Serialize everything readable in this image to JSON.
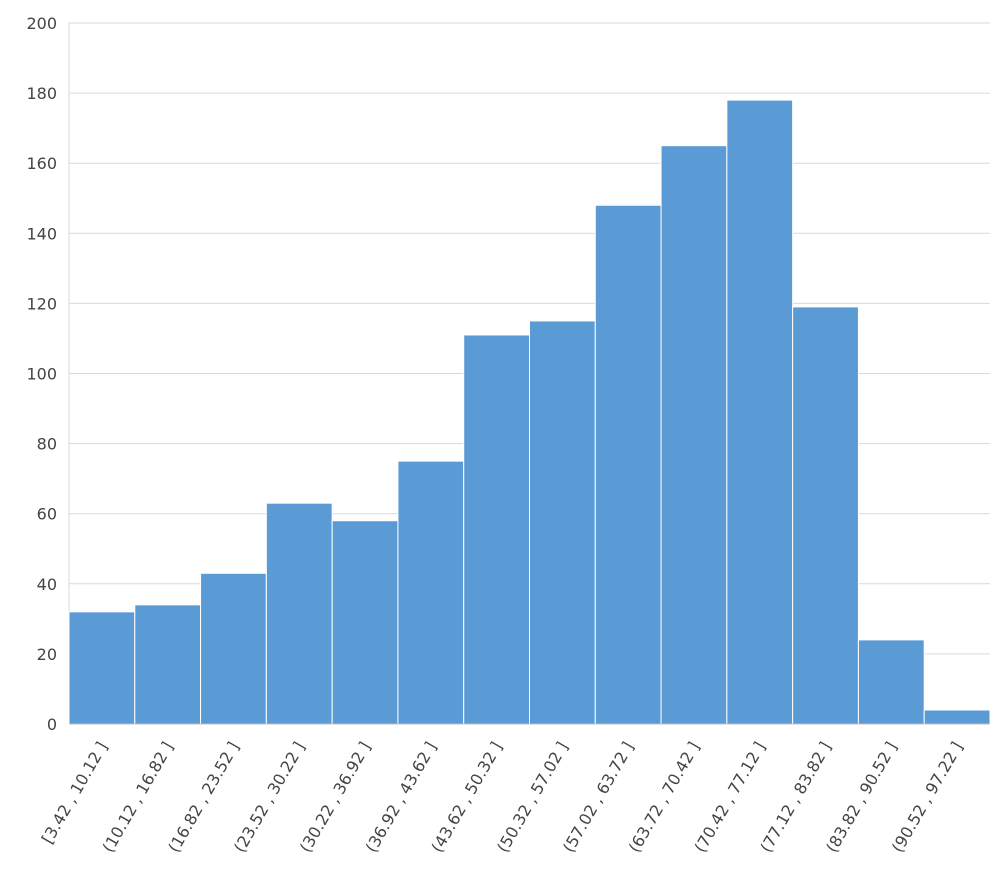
{
  "chart_data": {
    "type": "bar",
    "categories": [
      "[3.42 , 10.12 ]",
      "(10.12 , 16.82 ]",
      "(16.82 , 23.52 ]",
      "(23.52 , 30.22 ]",
      "(30.22 , 36.92 ]",
      "(36.92 , 43.62 ]",
      "(43.62 , 50.32 ]",
      "(50.32 , 57.02 ]",
      "(57.02 , 63.72 ]",
      "(63.72 , 70.42 ]",
      "(70.42 , 77.12 ]",
      "(77.12 , 83.82 ]",
      "(83.82 , 90.52 ]",
      "(90.52 , 97.22 ]"
    ],
    "values": [
      32,
      34,
      43,
      63,
      58,
      75,
      111,
      115,
      148,
      165,
      178,
      119,
      24,
      4
    ],
    "color": "#5b9bd5",
    "ylim": [
      0,
      200
    ],
    "yticks": [
      0,
      20,
      40,
      60,
      80,
      100,
      120,
      140,
      160,
      180,
      200
    ],
    "grid": true
  }
}
